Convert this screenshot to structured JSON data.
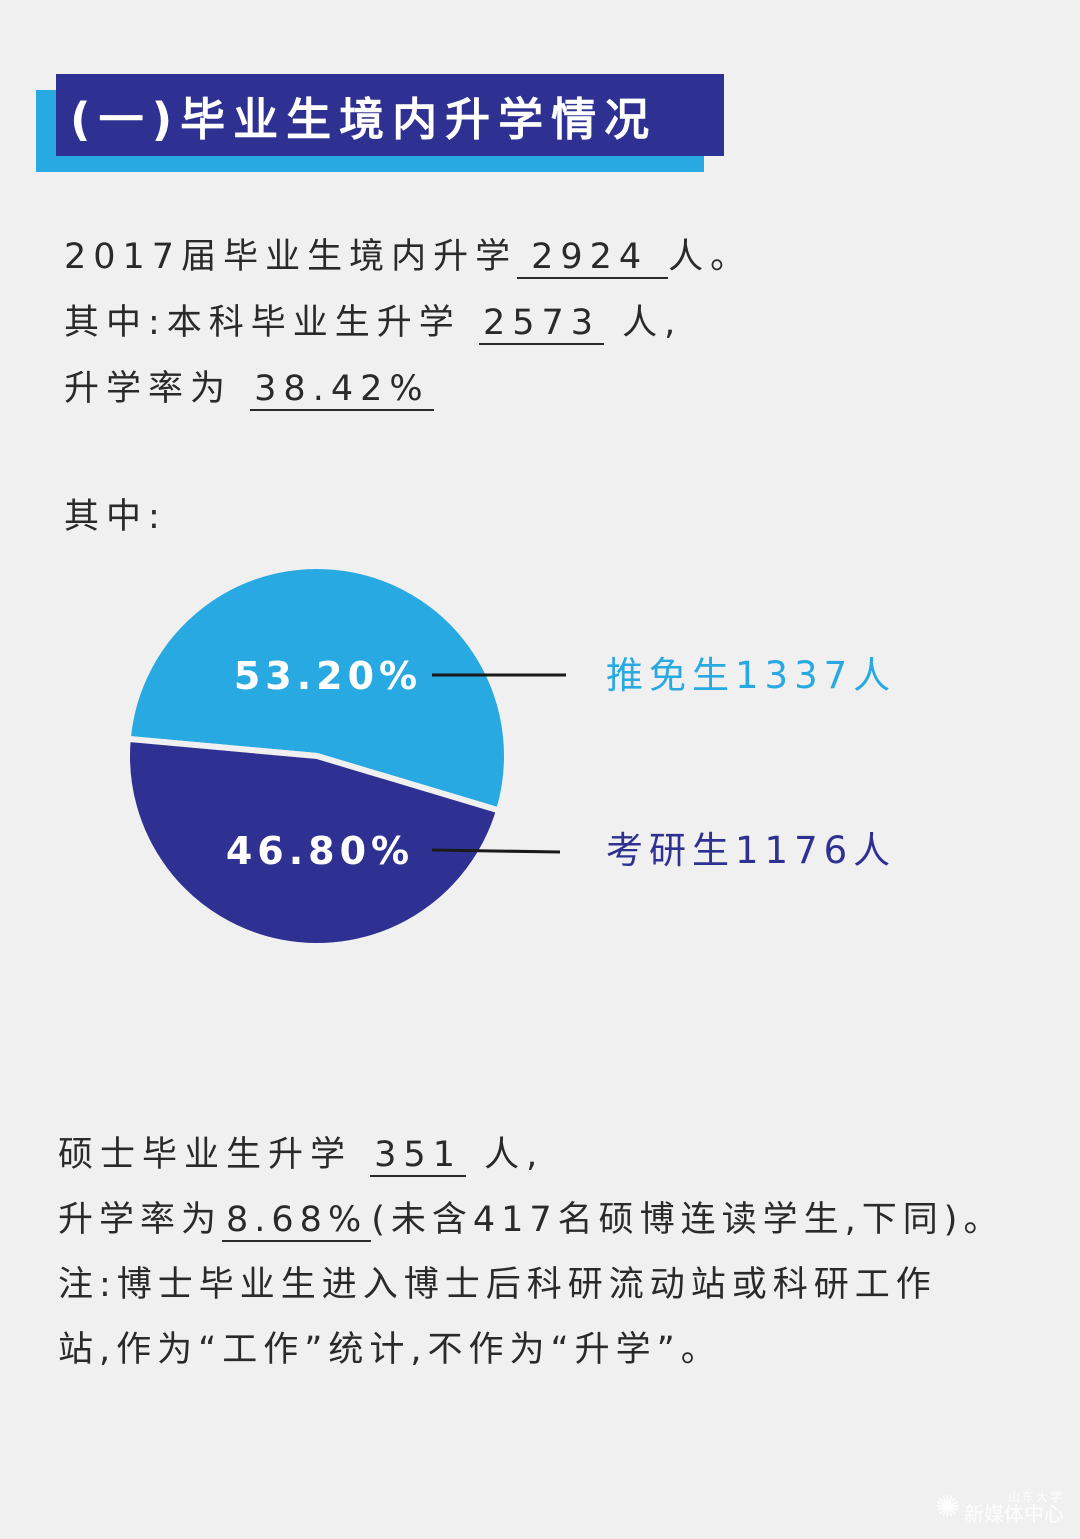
{
  "title": "(一)毕业生境内升学情况",
  "summary": {
    "line1_prefix": "2017届毕业生境内升学",
    "line1_value": "2924",
    "line1_suffix": "人。",
    "line2_prefix": "其中:本科毕业生升学",
    "line2_value": "2573",
    "line2_suffix": "人,",
    "line3_prefix": "升学率为",
    "line3_value": "38.42%"
  },
  "among_label": "其中:",
  "chart_data": {
    "type": "pie",
    "slices": [
      {
        "label": "推免生1337人",
        "value": 53.2,
        "percent_label": "53.20%",
        "color": "#29a9e1"
      },
      {
        "label": "考研生1176人",
        "value": 46.8,
        "percent_label": "46.80%",
        "color": "#2e3192"
      }
    ]
  },
  "masters": {
    "line1_prefix": "硕士毕业生升学",
    "line1_value": "351",
    "line1_suffix": "人,",
    "line2_prefix": "升学率为",
    "line2_value": "8.68%",
    "line2_suffix": "(未含417名硕博连读学生,下同)。",
    "note_line1": "注:博士毕业生进入博士后科研流动站或科研工作",
    "note_line2": "站,作为“工作”统计,不作为“升学”。"
  },
  "watermark": {
    "line1": "山东大学",
    "line2": "新媒体中心"
  }
}
